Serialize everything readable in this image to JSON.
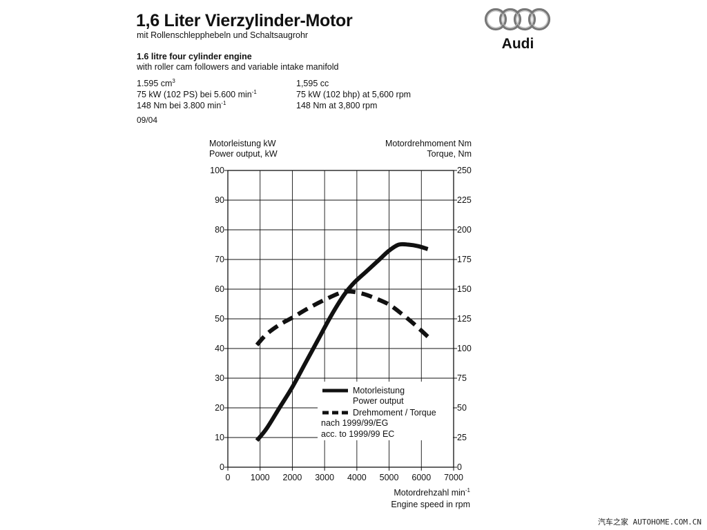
{
  "header": {
    "title": "1,6 Liter Vierzylinder-Motor",
    "subtitle": "mit Rollenschlepphebeln und Schaltsaugrohr",
    "title_en": "1.6 litre four cylinder engine",
    "subtitle_en": "with roller cam followers and variable intake manifold",
    "date": "09/04"
  },
  "specs_de": {
    "displacement": "1.595 cm",
    "displacement_sup": "3",
    "power": "75 kW (102 PS) bei 5.600 min",
    "power_sup": "-1",
    "torque": "148 Nm bei 3.800 min",
    "torque_sup": "-1"
  },
  "specs_en": {
    "displacement": "1,595 cc",
    "power": "75 kW (102 bhp) at 5,600 rpm",
    "torque": "148 Nm at 3,800 rpm"
  },
  "logo": {
    "icon": "audi-rings-icon",
    "text": "Audi"
  },
  "watermark": "汽车之家 AUTOHOME.COM.CN",
  "chart_data": {
    "type": "line",
    "left_axis": {
      "label_de": "Motorleistung kW",
      "label_en": "Power output, kW",
      "range": [
        0,
        100
      ],
      "ticks": [
        0,
        10,
        20,
        30,
        40,
        50,
        60,
        70,
        80,
        90,
        100
      ]
    },
    "right_axis": {
      "label_de": "Motordrehmoment Nm",
      "label_en": "Torque, Nm",
      "range": [
        0,
        250
      ],
      "ticks": [
        0,
        25,
        50,
        75,
        100,
        125,
        150,
        175,
        200,
        225,
        250
      ]
    },
    "x_axis": {
      "label_de": "Motordrehzahl min",
      "label_de_sup": "-1",
      "label_en": "Engine speed in rpm",
      "range": [
        0,
        7000
      ],
      "ticks": [
        0,
        1000,
        2000,
        3000,
        4000,
        5000,
        6000,
        7000
      ]
    },
    "grid": true,
    "series": [
      {
        "name": "Motorleistung",
        "name_en": "Power output",
        "axis": "left",
        "style": "solid",
        "x": [
          900,
          1200,
          1600,
          2000,
          2400,
          2800,
          3200,
          3600,
          3900,
          4300,
          4700,
          5000,
          5300,
          5600,
          5900,
          6200
        ],
        "y": [
          9,
          13,
          20,
          27,
          35,
          43,
          51,
          58,
          62,
          66,
          70,
          73,
          75,
          75,
          74.5,
          73.5
        ]
      },
      {
        "name": "Drehmoment / Torque",
        "axis": "right",
        "style": "dashed",
        "x": [
          900,
          1200,
          1600,
          2000,
          2500,
          3000,
          3500,
          3800,
          4200,
          4600,
          5000,
          5400,
          5800,
          6200
        ],
        "y": [
          103,
          112,
          120,
          126,
          134,
          141,
          147,
          148,
          146,
          142,
          137,
          129,
          120,
          110
        ]
      }
    ],
    "legend": {
      "position": "bottom-right",
      "note_de": "nach 1999/99/EG",
      "note_en": "acc. to 1999/99 EC"
    }
  }
}
